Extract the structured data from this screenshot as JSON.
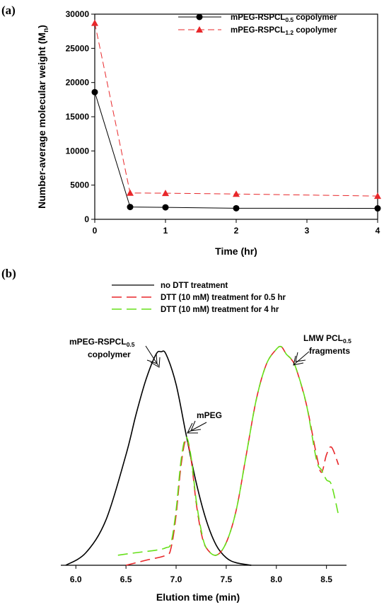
{
  "colors": {
    "black": "#000000",
    "red": "#e8272a",
    "green": "#66e01a"
  },
  "chart_data": [
    {
      "panel_label": "(a)",
      "type": "line",
      "xlabel": "Time (hr)",
      "ylabel_main": "Number-average molecular weight (M",
      "ylabel_sub": "n",
      "ylabel_close": ")",
      "xlim": [
        0,
        4
      ],
      "ylim": [
        0,
        30000
      ],
      "xticks": [
        0,
        1,
        2,
        3,
        4
      ],
      "yticks": [
        0,
        5000,
        10000,
        15000,
        20000,
        25000,
        30000
      ],
      "legend_position": "top-right",
      "series": [
        {
          "name_main": "mPEG-RSPCL",
          "name_sub": "0.5",
          "name_tail": " copolymer",
          "color": "#000000",
          "marker": "circle",
          "dash": "solid",
          "x": [
            0,
            0.5,
            1,
            2,
            4
          ],
          "y": [
            18600,
            1800,
            1750,
            1620,
            1600
          ]
        },
        {
          "name_main": "mPEG-RSPCL",
          "name_sub": "1.2",
          "name_tail": " copolymer",
          "color": "#e8272a",
          "marker": "triangle",
          "dash": "long-dash",
          "x": [
            0,
            0.5,
            1,
            2,
            4
          ],
          "y": [
            28700,
            3850,
            3820,
            3700,
            3400
          ]
        }
      ]
    },
    {
      "panel_label": "(b)",
      "type": "line",
      "xlabel": "Elution time (min)",
      "xlim": [
        5.85,
        8.7
      ],
      "ylim": [
        0,
        1
      ],
      "xticks": [
        6.0,
        6.5,
        7.0,
        7.5,
        8.0,
        8.5
      ],
      "xtick_labels": [
        "6.0",
        "6.5",
        "7.0",
        "7.5",
        "8.0",
        "8.5"
      ],
      "legend_position": "top-center",
      "annotations": {
        "copolymer_line1_main": "mPEG-RSPCL",
        "copolymer_line1_sub": "0.5",
        "copolymer_line2": "copolymer",
        "mpeg": "mPEG",
        "lmw_line1_main": "LMW PCL",
        "lmw_line1_sub": "0.5",
        "lmw_line2": "fragments"
      },
      "series": [
        {
          "name": "no DTT treatment",
          "color": "#000000",
          "dash": "solid",
          "x": [
            5.9,
            6.1,
            6.3,
            6.5,
            6.6,
            6.7,
            6.8,
            6.85,
            6.9,
            7.0,
            7.1,
            7.2,
            7.3,
            7.4,
            7.5,
            7.6,
            7.75
          ],
          "y": [
            0.0,
            0.05,
            0.18,
            0.44,
            0.6,
            0.74,
            0.84,
            0.85,
            0.84,
            0.72,
            0.52,
            0.33,
            0.18,
            0.08,
            0.03,
            0.01,
            0.0
          ]
        },
        {
          "name": "DTT (10 mM) treatment for 0.5 hr",
          "color": "#e8272a",
          "dash": "long-dash",
          "x": [
            6.5,
            6.7,
            6.9,
            6.95,
            7.0,
            7.05,
            7.1,
            7.15,
            7.2,
            7.25,
            7.3,
            7.4,
            7.5,
            7.6,
            7.7,
            7.8,
            7.9,
            8.0,
            8.05,
            8.1,
            8.15,
            8.2,
            8.3,
            8.4,
            8.45,
            8.5,
            8.55,
            8.62
          ],
          "y": [
            0.0,
            0.02,
            0.04,
            0.07,
            0.2,
            0.4,
            0.5,
            0.42,
            0.25,
            0.13,
            0.07,
            0.04,
            0.09,
            0.22,
            0.44,
            0.66,
            0.8,
            0.86,
            0.87,
            0.84,
            0.82,
            0.78,
            0.64,
            0.44,
            0.37,
            0.44,
            0.47,
            0.4
          ]
        },
        {
          "name": "DTT (10 mM) treatment for 4 hr",
          "color": "#66e01a",
          "dash": "long-dash",
          "x": [
            6.42,
            6.6,
            6.8,
            6.9,
            6.95,
            7.0,
            7.05,
            7.1,
            7.15,
            7.2,
            7.25,
            7.3,
            7.4,
            7.5,
            7.6,
            7.7,
            7.8,
            7.9,
            8.0,
            8.05,
            8.1,
            8.15,
            8.2,
            8.3,
            8.4,
            8.45,
            8.5,
            8.55,
            8.62
          ],
          "y": [
            0.04,
            0.05,
            0.06,
            0.07,
            0.09,
            0.22,
            0.42,
            0.51,
            0.43,
            0.26,
            0.14,
            0.07,
            0.04,
            0.09,
            0.22,
            0.44,
            0.66,
            0.8,
            0.86,
            0.87,
            0.84,
            0.82,
            0.78,
            0.64,
            0.42,
            0.38,
            0.34,
            0.32,
            0.2
          ]
        }
      ]
    }
  ]
}
